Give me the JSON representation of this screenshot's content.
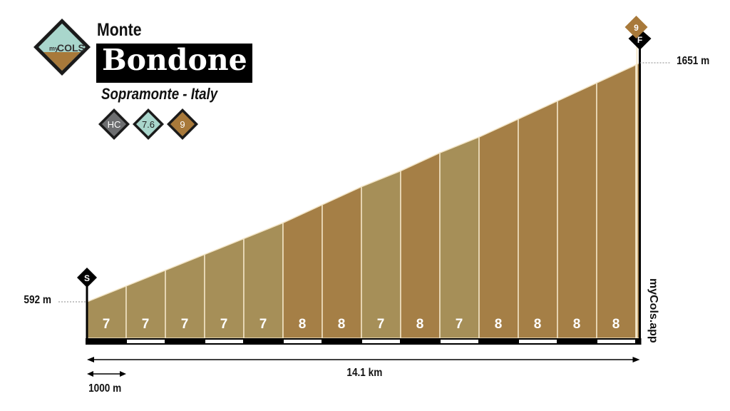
{
  "title": {
    "prefix": "Monte",
    "name": "Bondone",
    "location": "Sopramonte - Italy"
  },
  "logo": {
    "text_small": "my",
    "text_big": "COLS"
  },
  "badges": [
    {
      "label": "HC",
      "color": "#6d6e70"
    },
    {
      "label": "7.6",
      "color": "#a9d6cc"
    },
    {
      "label": "9",
      "color": "#a8793a"
    }
  ],
  "watermark": "myCols.app",
  "chart_data": {
    "type": "area",
    "start_elevation": 592,
    "end_elevation": 1651,
    "start_label": "592 m",
    "end_label": "1651 m",
    "total_distance_km": 14.1,
    "distance_label": "14.1 km",
    "scale_label": "1000 m",
    "start_marker": "S",
    "finish_marker": "F",
    "max_grade_marker": "9",
    "segment_grades": [
      7,
      7,
      7,
      7,
      7,
      8,
      8,
      7,
      8,
      7,
      8,
      8,
      8,
      8
    ],
    "colors": {
      "7": "#a68f58",
      "8": "#a57f46"
    }
  }
}
